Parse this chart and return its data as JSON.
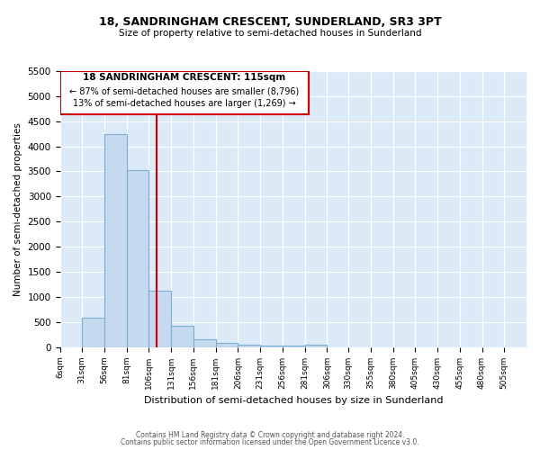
{
  "title_line1": "18, SANDRINGHAM CRESCENT, SUNDERLAND, SR3 3PT",
  "title_line2": "Size of property relative to semi-detached houses in Sunderland",
  "xlabel": "Distribution of semi-detached houses by size in Sunderland",
  "ylabel": "Number of semi-detached properties",
  "property_label": "18 SANDRINGHAM CRESCENT: 115sqm",
  "pct_smaller": 87,
  "count_smaller": "8,796",
  "pct_larger": 13,
  "count_larger": "1,269",
  "bin_labels": [
    "6sqm",
    "31sqm",
    "56sqm",
    "81sqm",
    "106sqm",
    "131sqm",
    "156sqm",
    "181sqm",
    "206sqm",
    "231sqm",
    "256sqm",
    "281sqm",
    "306sqm",
    "330sqm",
    "355sqm",
    "380sqm",
    "405sqm",
    "430sqm",
    "455sqm",
    "480sqm",
    "505sqm"
  ],
  "bin_starts": [
    6,
    31,
    56,
    81,
    106,
    131,
    156,
    181,
    206,
    231,
    256,
    281,
    306,
    330,
    355,
    380,
    405,
    430,
    455,
    480
  ],
  "bar_heights": [
    0,
    590,
    4250,
    3520,
    1120,
    420,
    150,
    75,
    50,
    35,
    25,
    55,
    0,
    0,
    0,
    0,
    0,
    0,
    0,
    0
  ],
  "bar_color": "#c5d9ef",
  "bar_edge_color": "#7bafd4",
  "vline_x": 115,
  "vline_color": "#cc0000",
  "annotation_box_color": "#cc0000",
  "ylim": [
    0,
    5500
  ],
  "yticks": [
    0,
    500,
    1000,
    1500,
    2000,
    2500,
    3000,
    3500,
    4000,
    4500,
    5000,
    5500
  ],
  "xlim_left": 6,
  "xlim_right": 530,
  "background_color": "#dce9f7",
  "grid_color": "#ffffff",
  "footer_line1": "Contains HM Land Registry data © Crown copyright and database right 2024.",
  "footer_line2": "Contains public sector information licensed under the Open Government Licence v3.0."
}
